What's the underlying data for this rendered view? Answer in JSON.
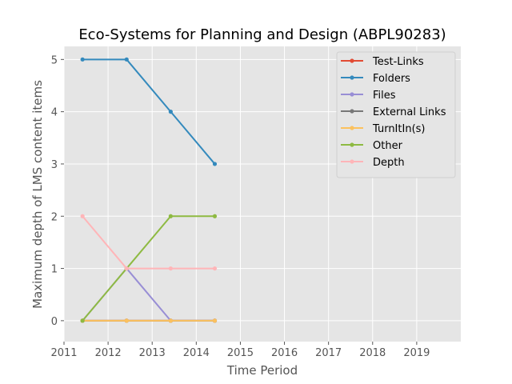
{
  "chart_data": {
    "type": "line",
    "title": "Eco-Systems for Planning and Design (ABPL90283)",
    "xlabel": "Time Period",
    "ylabel": "Maximum depth of LMS content items",
    "xlim": [
      2011,
      2020
    ],
    "ylim": [
      -0.4,
      5.25
    ],
    "xticks": [
      "2011",
      "2012",
      "2013",
      "2014",
      "2015",
      "2016",
      "2017",
      "2018",
      "2019"
    ],
    "yticks": [
      "0",
      "1",
      "2",
      "3",
      "4",
      "5"
    ],
    "grid": true,
    "legend_position": "top-right",
    "x": [
      2011.42,
      2012.42,
      2013.42,
      2014.42
    ],
    "series": [
      {
        "name": "Test-Links",
        "color": "#E24A33",
        "values": [
          0,
          0,
          0,
          0
        ]
      },
      {
        "name": "Folders",
        "color": "#348ABD",
        "values": [
          5,
          5,
          4,
          3
        ]
      },
      {
        "name": "Files",
        "color": "#988ED5",
        "values": [
          0,
          1,
          0,
          0
        ]
      },
      {
        "name": "External Links",
        "color": "#777777",
        "values": [
          0,
          0,
          0,
          0
        ]
      },
      {
        "name": "TurnItIn(s)",
        "color": "#FBC15E",
        "values": [
          0,
          0,
          0,
          0
        ]
      },
      {
        "name": "Other",
        "color": "#8EBA42",
        "values": [
          0,
          1,
          2,
          2
        ]
      },
      {
        "name": "Depth",
        "color": "#FFB5B8",
        "values": [
          2,
          1,
          1,
          1
        ]
      }
    ]
  }
}
